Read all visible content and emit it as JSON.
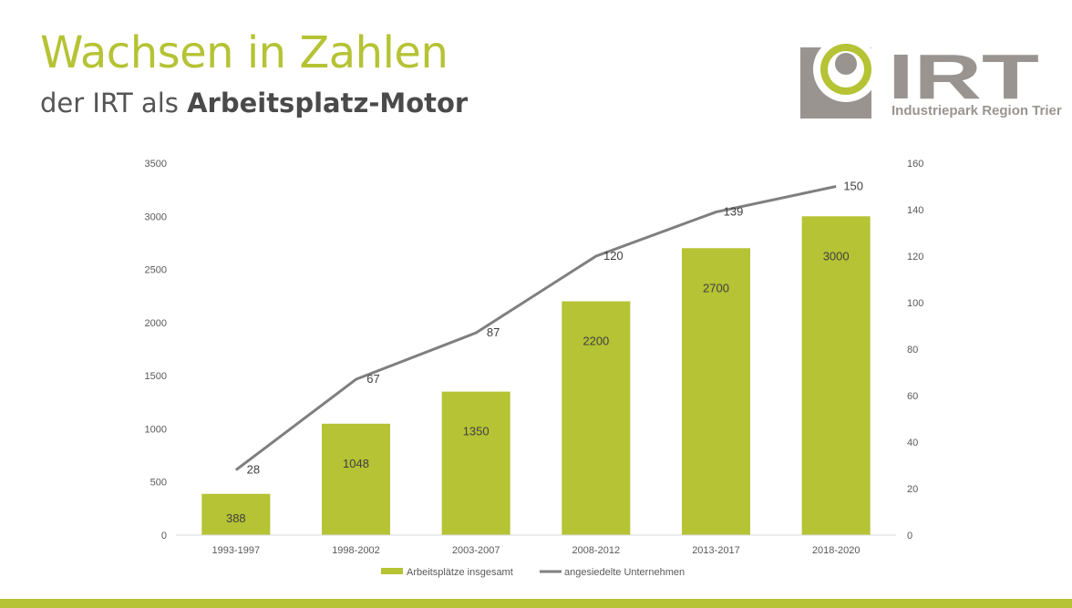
{
  "header": {
    "title": "Wachsen in Zahlen",
    "subtitle_prefix": "der IRT als ",
    "subtitle_bold": "Arbeitsplatz-Motor"
  },
  "logo": {
    "wordmark": "IRT",
    "tagline": "Industriepark Region Trier"
  },
  "colors": {
    "accent": "#b5c334",
    "line": "#7f7f7f",
    "text": "#555555"
  },
  "chart_data": {
    "type": "bar",
    "title": "",
    "categories": [
      "1993-1997",
      "1998-2002",
      "2003-2007",
      "2008-2012",
      "2013-2017",
      "2018-2020"
    ],
    "series": [
      {
        "name": "Arbeitsplätze insgesamt",
        "type": "bar",
        "axis": "left",
        "color": "#b5c334",
        "values": [
          388,
          1048,
          1350,
          2200,
          2700,
          3000
        ]
      },
      {
        "name": "angesiedelte Unternehmen",
        "type": "line",
        "axis": "right",
        "color": "#7f7f7f",
        "values": [
          28,
          67,
          87,
          120,
          139,
          150
        ]
      }
    ],
    "y_left": {
      "min": 0,
      "max": 3500,
      "ticks": [
        0,
        500,
        1000,
        1500,
        2000,
        2500,
        3000,
        3500
      ]
    },
    "y_right": {
      "min": 0,
      "max": 160,
      "ticks": [
        0,
        20,
        40,
        60,
        80,
        100,
        120,
        140,
        160
      ]
    },
    "grid": false,
    "legend": "bottom"
  }
}
